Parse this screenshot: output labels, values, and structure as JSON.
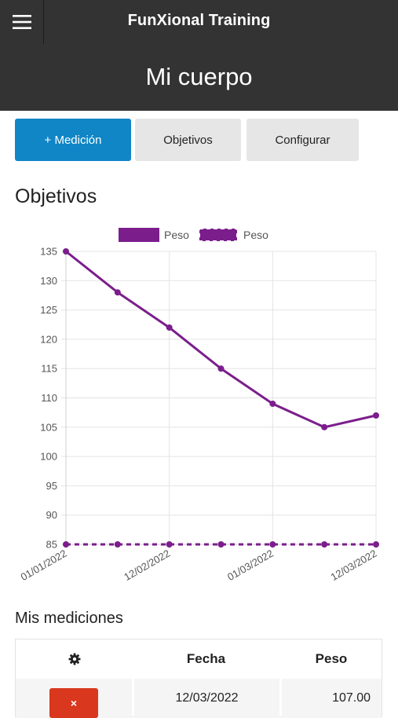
{
  "header": {
    "app_title": "FunXional Training",
    "page_title": "Mi cuerpo",
    "menu_icon": "hamburger-menu-icon"
  },
  "actions": {
    "add_measurement": "+ Medición",
    "goals": "Objetivos",
    "configure": "Configurar"
  },
  "goals_section": {
    "title": "Objetivos"
  },
  "colors": {
    "series": "#7b1e8c",
    "primary_button": "#1086c6",
    "delete_button": "#d9381e",
    "header_bg": "#333333"
  },
  "chart_data": {
    "type": "line",
    "title": "",
    "xlabel": "",
    "ylabel": "",
    "x_tick_labels": [
      "01/01/2022",
      "12/02/2022",
      "01/03/2022",
      "12/03/2022"
    ],
    "ylim": [
      85,
      135
    ],
    "y_ticks": [
      85,
      90,
      95,
      100,
      105,
      110,
      115,
      120,
      125,
      130,
      135
    ],
    "grid": true,
    "legend_position": "top",
    "series": [
      {
        "name": "Peso",
        "style": "solid",
        "color": "#7b1e8c",
        "values": [
          135,
          128,
          122,
          115,
          109,
          105,
          107
        ]
      },
      {
        "name": "Peso",
        "style": "dashed",
        "color": "#7b1e8c",
        "values": [
          85,
          85,
          85,
          85,
          85,
          85,
          85
        ]
      }
    ]
  },
  "measurements": {
    "title": "Mis mediciones",
    "headers": {
      "settings_icon": "gear-icon",
      "date": "Fecha",
      "weight": "Peso"
    },
    "rows": [
      {
        "delete_icon": "close-icon",
        "delete_glyph": "×",
        "date": "12/03/2022",
        "weight": "107.00"
      }
    ]
  }
}
